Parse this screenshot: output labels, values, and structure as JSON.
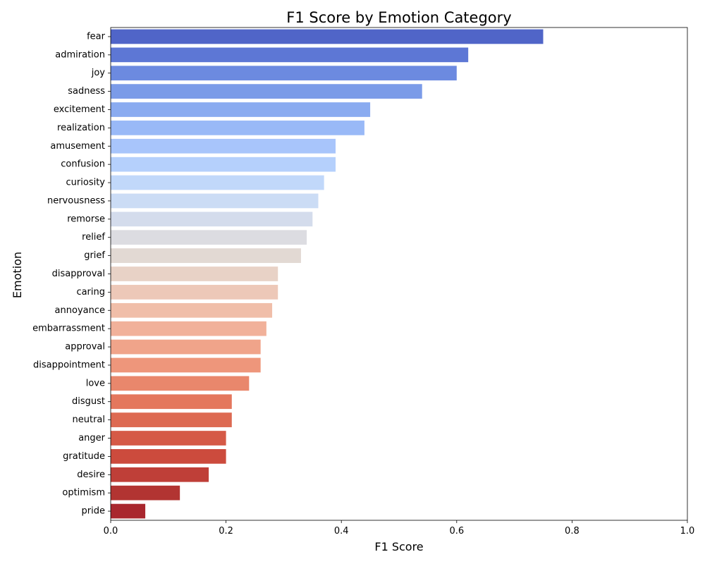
{
  "chart_data": {
    "type": "bar",
    "orientation": "horizontal",
    "title": "F1 Score by Emotion Category",
    "xlabel": "F1 Score",
    "ylabel": "Emotion",
    "xlim": [
      0,
      1.0
    ],
    "xticks": [
      "0.0",
      "0.2",
      "0.4",
      "0.6",
      "0.8",
      "1.0"
    ],
    "grid": false,
    "colormap": "coolwarm",
    "categories": [
      "fear",
      "admiration",
      "joy",
      "sadness",
      "excitement",
      "realization",
      "amusement",
      "confusion",
      "curiosity",
      "nervousness",
      "remorse",
      "relief",
      "grief",
      "disapproval",
      "caring",
      "annoyance",
      "embarrassment",
      "approval",
      "disappointment",
      "love",
      "disgust",
      "neutral",
      "anger",
      "gratitude",
      "desire",
      "optimism",
      "pride"
    ],
    "values": [
      0.75,
      0.62,
      0.6,
      0.54,
      0.45,
      0.44,
      0.39,
      0.39,
      0.37,
      0.36,
      0.35,
      0.34,
      0.33,
      0.29,
      0.29,
      0.28,
      0.27,
      0.26,
      0.26,
      0.24,
      0.21,
      0.21,
      0.2,
      0.2,
      0.17,
      0.12,
      0.06
    ],
    "colors": [
      "#5065c8",
      "#5d77d5",
      "#6c8ae0",
      "#7b9be8",
      "#8aabf0",
      "#99b9f7",
      "#a8c5fb",
      "#b5d0fc",
      "#c1d8fa",
      "#cbdcf5",
      "#d4dcec",
      "#dcdce1",
      "#e2d9d3",
      "#e8d2c6",
      "#edc8b8",
      "#f0bea9",
      "#f1b19a",
      "#f0a48a",
      "#ee967b",
      "#e9876c",
      "#e4775d",
      "#dd6a52",
      "#d55a47",
      "#cc4b3d",
      "#bf3f38",
      "#b23432",
      "#a9272e"
    ]
  }
}
